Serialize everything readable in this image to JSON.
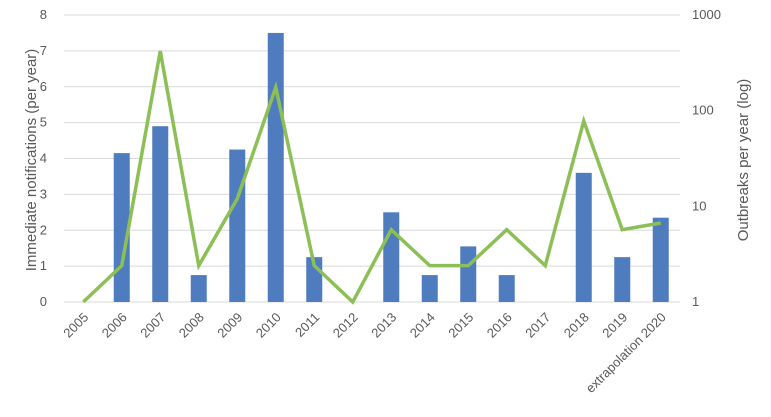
{
  "chart_data": {
    "type": "bar",
    "categories": [
      "2005",
      "2006",
      "2007",
      "2008",
      "2009",
      "2010",
      "2011",
      "2012",
      "2013",
      "2014",
      "2015",
      "2016",
      "2017",
      "2018",
      "2019",
      "extrapolation 2020"
    ],
    "series": [
      {
        "type": "bar",
        "axis": "left",
        "color": "#4f7cbf",
        "values": [
          0,
          4.15,
          4.9,
          0.75,
          4.25,
          7.5,
          1.25,
          0,
          2.5,
          0.75,
          1.55,
          0.75,
          0,
          3.6,
          1.25,
          2.35
        ]
      },
      {
        "type": "line",
        "axis": "right",
        "scale": "log",
        "color": "#8cbf55",
        "values": [
          1,
          2.4,
          420,
          2.4,
          12,
          175,
          2.4,
          1,
          5.7,
          2.4,
          2.4,
          5.7,
          2.4,
          78,
          5.7,
          6.7
        ]
      }
    ],
    "ylabel": "Immediate notifications (per year)",
    "y2label": "Outbreaks per year (log)",
    "ylim": [
      0,
      8
    ],
    "yticks": [
      "0",
      "1",
      "2",
      "3",
      "4",
      "5",
      "6",
      "7",
      "8"
    ],
    "y2lim": [
      1,
      1000
    ],
    "y2scale": "log",
    "y2ticks": [
      "1",
      "10",
      "100",
      "1000"
    ],
    "grid": true,
    "legend": "none"
  }
}
